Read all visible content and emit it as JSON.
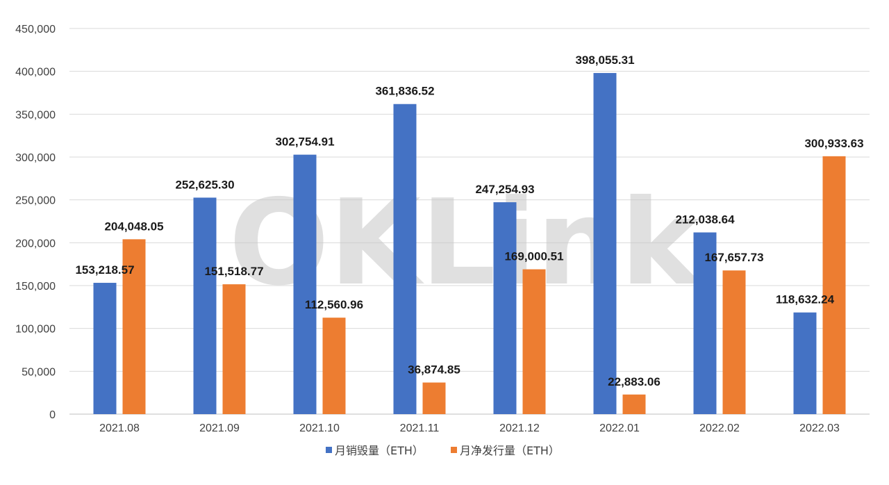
{
  "watermark": "OKLink",
  "chart_data": {
    "type": "bar",
    "categories": [
      "2021.08",
      "2021.09",
      "2021.10",
      "2021.11",
      "2021.12",
      "2022.01",
      "2022.02",
      "2022.03"
    ],
    "series": [
      {
        "name": "月销毁量（ETH）",
        "color": "#4472C4",
        "values": [
          153218.57,
          252625.3,
          302754.91,
          361836.52,
          247254.93,
          398055.31,
          212038.64,
          118632.24
        ],
        "labels": [
          "153,218.57",
          "252,625.30",
          "302,754.91",
          "361,836.52",
          "247,254.93",
          "398,055.31",
          "212,038.64",
          "118,632.24"
        ]
      },
      {
        "name": "月净发行量（ETH）",
        "color": "#ED7D31",
        "values": [
          204048.05,
          151518.77,
          112560.96,
          36874.85,
          169000.51,
          22883.06,
          167657.73,
          300933.63
        ],
        "labels": [
          "204,048.05",
          "151,518.77",
          "112,560.96",
          "36,874.85",
          "169,000.51",
          "22,883.06",
          "167,657.73",
          "300,933.63"
        ]
      }
    ],
    "ylim": [
      0,
      450000
    ],
    "yticks": [
      0,
      50000,
      100000,
      150000,
      200000,
      250000,
      300000,
      350000,
      400000,
      450000
    ],
    "ytick_labels": [
      "0",
      "50,000",
      "100,000",
      "150,000",
      "200,000",
      "250,000",
      "300,000",
      "350,000",
      "400,000",
      "450,000"
    ],
    "grid": true,
    "legend_position": "bottom-center",
    "title": "",
    "xlabel": "",
    "ylabel": ""
  }
}
